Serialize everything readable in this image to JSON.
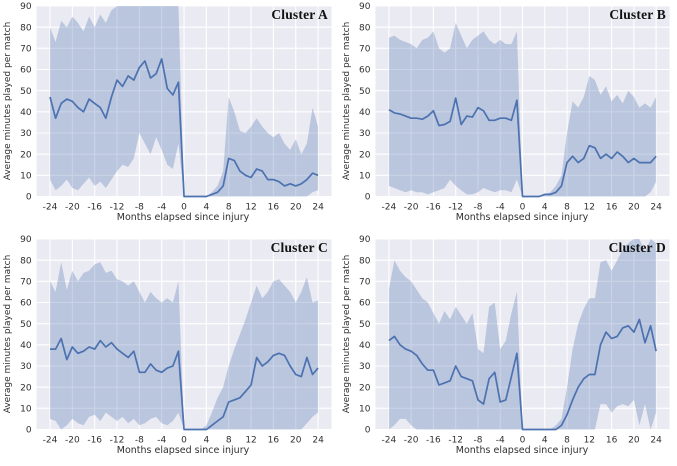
{
  "figure": {
    "xlabel": "Months elapsed since injury",
    "ylabel": "Average minutes played per match",
    "x_ticks": [
      -24,
      -20,
      -16,
      -12,
      -8,
      -4,
      0,
      4,
      8,
      12,
      16,
      20,
      24
    ],
    "y_ticks": [
      0,
      10,
      20,
      30,
      40,
      50,
      60,
      70,
      80,
      90
    ]
  },
  "colors": {
    "line": "#4c72b0",
    "band": "rgba(76,114,176,0.30)",
    "plot_bg": "#eaeaf2",
    "grid": "#ffffff",
    "tick_text": "#303030",
    "figure_bg": "#ffffff",
    "title_text": "#111111"
  },
  "chart_data": [
    {
      "type": "line",
      "title": "Cluster A",
      "xlabel": "Months elapsed since injury",
      "ylabel": "Average minutes played per match",
      "x": {
        "from": -24,
        "to": 24,
        "step": 1
      },
      "xlim": [
        -26.4,
        26.4
      ],
      "ylim": [
        0,
        90
      ],
      "grid": true,
      "legend": "none",
      "series": [
        {
          "name": "mean",
          "values": [
            47,
            37,
            44,
            46,
            45,
            42,
            40,
            46,
            44,
            42,
            37,
            47,
            55,
            52,
            57,
            55,
            61,
            64,
            56,
            58,
            65,
            51,
            48,
            54,
            0,
            0,
            0,
            0,
            0,
            1,
            2,
            5,
            18,
            17,
            12,
            10,
            9,
            13,
            12,
            8,
            8,
            7,
            5,
            6,
            5,
            6,
            8,
            11,
            10
          ]
        },
        {
          "name": "ci_upper",
          "values": [
            80,
            73,
            83,
            80,
            85,
            82,
            78,
            85,
            80,
            86,
            82,
            88,
            90,
            90,
            90,
            90,
            90,
            90,
            90,
            90,
            90,
            90,
            90,
            90,
            0,
            0,
            0,
            0,
            0,
            2,
            5,
            12,
            47,
            40,
            31,
            30,
            33,
            37,
            33,
            30,
            28,
            30,
            25,
            22,
            27,
            20,
            25,
            42,
            33
          ]
        },
        {
          "name": "ci_lower",
          "values": [
            8,
            3,
            5,
            8,
            4,
            3,
            6,
            9,
            5,
            7,
            4,
            8,
            12,
            15,
            14,
            18,
            30,
            25,
            20,
            28,
            22,
            15,
            13,
            25,
            0,
            0,
            0,
            0,
            0,
            0,
            0,
            0,
            0,
            0,
            0,
            0,
            0,
            0,
            0,
            0,
            0,
            0,
            0,
            0,
            0,
            0,
            0,
            2,
            3
          ]
        }
      ]
    },
    {
      "type": "line",
      "title": "Cluster B",
      "xlabel": "Months elapsed since injury",
      "ylabel": "Average minutes played per match",
      "x": {
        "from": -24,
        "to": 24,
        "step": 1
      },
      "xlim": [
        -26.4,
        26.4
      ],
      "ylim": [
        0,
        90
      ],
      "grid": true,
      "legend": "none",
      "series": [
        {
          "name": "mean",
          "values": [
            41,
            39.5,
            39,
            38,
            37,
            37,
            36.5,
            38,
            40.5,
            33.5,
            34,
            35.5,
            46.5,
            34,
            38,
            37.5,
            42,
            40.5,
            36,
            36,
            37,
            37,
            36,
            45.5,
            0,
            0,
            0,
            0,
            1,
            1,
            2,
            5,
            16,
            19,
            16,
            18,
            24,
            23,
            18,
            20,
            18,
            21,
            19,
            16,
            18,
            16,
            16,
            16,
            19
          ]
        },
        {
          "name": "ci_upper",
          "values": [
            75,
            76,
            74,
            73,
            72,
            70,
            74,
            75,
            78,
            70,
            68,
            70,
            82,
            76,
            70,
            74,
            76,
            78,
            74,
            72,
            74,
            72,
            72,
            78,
            0,
            0,
            0,
            0,
            1,
            2,
            5,
            10,
            30,
            45,
            42,
            47,
            57,
            55,
            48,
            52,
            45,
            48,
            44,
            50,
            47,
            42,
            44,
            42,
            47
          ]
        },
        {
          "name": "ci_lower",
          "values": [
            5,
            4,
            3,
            2,
            3,
            2,
            2,
            1,
            2,
            3,
            4,
            8,
            5,
            3,
            1,
            1,
            2,
            4,
            3,
            2,
            3,
            3,
            2,
            8,
            0,
            0,
            0,
            0,
            0,
            0,
            0,
            0,
            0,
            0,
            0,
            0,
            0,
            0,
            0,
            0,
            0,
            0,
            0,
            0,
            0,
            0,
            0,
            2,
            7
          ]
        }
      ]
    },
    {
      "type": "line",
      "title": "Cluster C",
      "xlabel": "Months elapsed since injury",
      "ylabel": "Average minutes played per match",
      "x": {
        "from": -24,
        "to": 24,
        "step": 1
      },
      "xlim": [
        -26.4,
        26.4
      ],
      "ylim": [
        0,
        90
      ],
      "grid": true,
      "legend": "none",
      "series": [
        {
          "name": "mean",
          "values": [
            38,
            38,
            43,
            33,
            39,
            36,
            37,
            39,
            38,
            42,
            39,
            41,
            38,
            36,
            34,
            37,
            27,
            27,
            31,
            28,
            27,
            29,
            30,
            37,
            0,
            0,
            0,
            0,
            0,
            2,
            4,
            6,
            13,
            14,
            15,
            18,
            21,
            34,
            30,
            32,
            35,
            36,
            35,
            30,
            26,
            25,
            34,
            26,
            29
          ]
        },
        {
          "name": "ci_upper",
          "values": [
            70,
            65,
            79,
            66,
            75,
            70,
            74,
            75,
            78,
            79,
            74,
            75,
            71,
            70,
            68,
            70,
            65,
            60,
            65,
            62,
            60,
            62,
            60,
            70,
            0,
            0,
            0,
            0,
            2,
            8,
            15,
            20,
            30,
            38,
            45,
            52,
            60,
            68,
            62,
            65,
            70,
            71,
            68,
            65,
            60,
            65,
            72,
            60,
            61
          ]
        },
        {
          "name": "ci_lower",
          "values": [
            5,
            4,
            0,
            2,
            5,
            3,
            2,
            6,
            7,
            4,
            8,
            6,
            4,
            6,
            3,
            5,
            2,
            3,
            5,
            6,
            3,
            2,
            4,
            8,
            0,
            0,
            0,
            0,
            0,
            0,
            0,
            0,
            0,
            0,
            0,
            0,
            0,
            0,
            0,
            0,
            0,
            0,
            0,
            0,
            0,
            0,
            3,
            6,
            8
          ]
        }
      ]
    },
    {
      "type": "line",
      "title": "Cluster D",
      "xlabel": "Months elapsed since injury",
      "ylabel": "Average minutes played per match",
      "x": {
        "from": -24,
        "to": 24,
        "step": 1
      },
      "xlim": [
        -26.4,
        26.4
      ],
      "ylim": [
        0,
        90
      ],
      "grid": true,
      "legend": "none",
      "series": [
        {
          "name": "mean",
          "values": [
            42,
            44,
            40,
            38,
            37,
            35,
            31,
            28,
            28,
            21,
            22,
            23,
            30,
            25,
            24,
            23,
            14,
            12,
            24,
            27,
            13,
            14,
            25,
            36,
            0,
            0,
            0,
            0,
            0,
            0,
            0,
            2,
            7,
            14,
            20,
            24,
            26,
            26,
            40,
            46,
            43,
            44,
            48,
            49,
            46,
            52,
            41,
            49,
            37
          ]
        },
        {
          "name": "ci_upper",
          "values": [
            66,
            80,
            75,
            72,
            70,
            66,
            62,
            60,
            55,
            50,
            56,
            52,
            58,
            54,
            50,
            55,
            38,
            36,
            58,
            60,
            38,
            42,
            55,
            65,
            0,
            0,
            0,
            0,
            0,
            0,
            2,
            5,
            20,
            38,
            50,
            57,
            62,
            62,
            79,
            80,
            75,
            80,
            85,
            88,
            90,
            90,
            84,
            90,
            88
          ]
        },
        {
          "name": "ci_lower",
          "values": [
            0,
            2,
            5,
            5,
            2,
            0,
            0,
            0,
            0,
            0,
            0,
            0,
            0,
            0,
            0,
            0,
            0,
            0,
            0,
            0,
            0,
            0,
            0,
            0,
            0,
            0,
            0,
            0,
            0,
            0,
            0,
            0,
            0,
            0,
            0,
            0,
            0,
            0,
            12,
            12,
            8,
            11,
            12,
            11,
            14,
            2,
            12,
            0,
            8
          ]
        }
      ]
    }
  ]
}
